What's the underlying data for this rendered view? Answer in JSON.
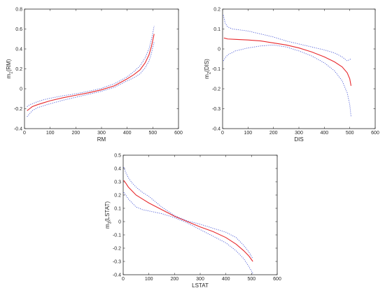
{
  "chart_data": [
    {
      "type": "line",
      "xlabel": "RM",
      "ylabel_main": "m",
      "ylabel_sub": "1",
      "ylabel_rest": "(RM)",
      "xlim": [
        0,
        600
      ],
      "ylim": [
        -0.4,
        0.8
      ],
      "xticks": [
        "0",
        "100",
        "200",
        "300",
        "400",
        "500",
        "600"
      ],
      "yticks": [
        "-0.4",
        "-0.2",
        "0",
        "0.2",
        "0.4",
        "0.6",
        "0.8"
      ],
      "series": [
        {
          "role": "fit",
          "x": [
            10,
            20,
            30,
            50,
            75,
            100,
            150,
            200,
            250,
            300,
            350,
            400,
            425,
            450,
            470,
            485,
            495,
            500,
            505
          ],
          "y": [
            -0.22,
            -0.2,
            -0.18,
            -0.16,
            -0.14,
            -0.12,
            -0.09,
            -0.065,
            -0.04,
            -0.01,
            0.03,
            0.1,
            0.14,
            0.19,
            0.26,
            0.34,
            0.43,
            0.49,
            0.55
          ]
        },
        {
          "role": "upper",
          "x": [
            10,
            20,
            30,
            50,
            75,
            100,
            150,
            200,
            250,
            300,
            350,
            400,
            425,
            450,
            470,
            485,
            495,
            500,
            505
          ],
          "y": [
            -0.18,
            -0.16,
            -0.15,
            -0.13,
            -0.11,
            -0.095,
            -0.07,
            -0.05,
            -0.025,
            0.005,
            0.05,
            0.12,
            0.17,
            0.23,
            0.31,
            0.4,
            0.5,
            0.56,
            0.63
          ]
        },
        {
          "role": "lower",
          "x": [
            10,
            20,
            30,
            50,
            75,
            100,
            150,
            200,
            250,
            300,
            350,
            400,
            425,
            450,
            470,
            485,
            495,
            500,
            505
          ],
          "y": [
            -0.28,
            -0.25,
            -0.22,
            -0.19,
            -0.17,
            -0.15,
            -0.115,
            -0.085,
            -0.055,
            -0.025,
            0.015,
            0.08,
            0.11,
            0.15,
            0.21,
            0.28,
            0.36,
            0.42,
            0.47
          ]
        }
      ]
    },
    {
      "type": "line",
      "xlabel": "DIS",
      "ylabel_main": "m",
      "ylabel_sub": "2",
      "ylabel_rest": "(DIS)",
      "xlim": [
        0,
        600
      ],
      "ylim": [
        -0.4,
        0.2
      ],
      "xticks": [
        "0",
        "100",
        "200",
        "300",
        "400",
        "500",
        "600"
      ],
      "yticks": [
        "-0.4",
        "-0.3",
        "-0.2",
        "-0.1",
        "0",
        "0.1",
        "0.2"
      ],
      "series": [
        {
          "role": "fit",
          "x": [
            5,
            20,
            50,
            100,
            150,
            200,
            250,
            300,
            350,
            400,
            440,
            470,
            490,
            500,
            505
          ],
          "y": [
            0.055,
            0.05,
            0.048,
            0.045,
            0.04,
            0.03,
            0.02,
            0.005,
            -0.015,
            -0.04,
            -0.065,
            -0.09,
            -0.12,
            -0.15,
            -0.185
          ]
        },
        {
          "role": "upper",
          "x": [
            3,
            10,
            20,
            40,
            70,
            100,
            150,
            200,
            250,
            300,
            350,
            400,
            440,
            470,
            490,
            505
          ],
          "y": [
            0.17,
            0.13,
            0.11,
            0.1,
            0.095,
            0.09,
            0.075,
            0.06,
            0.04,
            0.025,
            0.01,
            -0.005,
            -0.02,
            -0.04,
            -0.06,
            -0.05
          ]
        },
        {
          "role": "lower",
          "x": [
            3,
            10,
            20,
            50,
            100,
            150,
            200,
            250,
            300,
            350,
            400,
            440,
            470,
            490,
            500,
            505
          ],
          "y": [
            -0.06,
            -0.045,
            -0.03,
            -0.01,
            0.005,
            0.015,
            0.02,
            0.01,
            -0.01,
            -0.035,
            -0.07,
            -0.11,
            -0.16,
            -0.22,
            -0.28,
            -0.34
          ]
        }
      ]
    },
    {
      "type": "line",
      "xlabel": "LSTAT",
      "ylabel_main": "m",
      "ylabel_sub": "3",
      "ylabel_rest": "(LSTAT)",
      "xlim": [
        0,
        600
      ],
      "ylim": [
        -0.4,
        0.5
      ],
      "xticks": [
        "0",
        "100",
        "200",
        "300",
        "400",
        "500",
        "600"
      ],
      "yticks": [
        "-0.4",
        "-0.3",
        "-0.2",
        "-0.1",
        "0",
        "0.1",
        "0.2",
        "0.3",
        "0.4",
        "0.5"
      ],
      "series": [
        {
          "role": "fit",
          "x": [
            2,
            10,
            20,
            35,
            50,
            75,
            100,
            150,
            200,
            250,
            300,
            350,
            400,
            440,
            470,
            490,
            505
          ],
          "y": [
            0.31,
            0.29,
            0.26,
            0.23,
            0.2,
            0.17,
            0.14,
            0.09,
            0.04,
            0.0,
            -0.04,
            -0.075,
            -0.12,
            -0.17,
            -0.22,
            -0.26,
            -0.3
          ]
        },
        {
          "role": "upper",
          "x": [
            2,
            10,
            20,
            35,
            50,
            75,
            100,
            150,
            200,
            250,
            300,
            350,
            400,
            440,
            470,
            490,
            505
          ],
          "y": [
            0.41,
            0.37,
            0.33,
            0.29,
            0.26,
            0.22,
            0.19,
            0.11,
            0.045,
            0.005,
            -0.02,
            -0.05,
            -0.08,
            -0.12,
            -0.18,
            -0.23,
            -0.28
          ]
        },
        {
          "role": "lower",
          "x": [
            2,
            10,
            20,
            35,
            50,
            75,
            100,
            150,
            200,
            250,
            300,
            350,
            400,
            440,
            470,
            490,
            505
          ],
          "y": [
            0.22,
            0.2,
            0.17,
            0.14,
            0.11,
            0.09,
            0.08,
            0.06,
            0.03,
            -0.01,
            -0.06,
            -0.11,
            -0.16,
            -0.22,
            -0.28,
            -0.34,
            -0.39
          ]
        }
      ]
    }
  ]
}
